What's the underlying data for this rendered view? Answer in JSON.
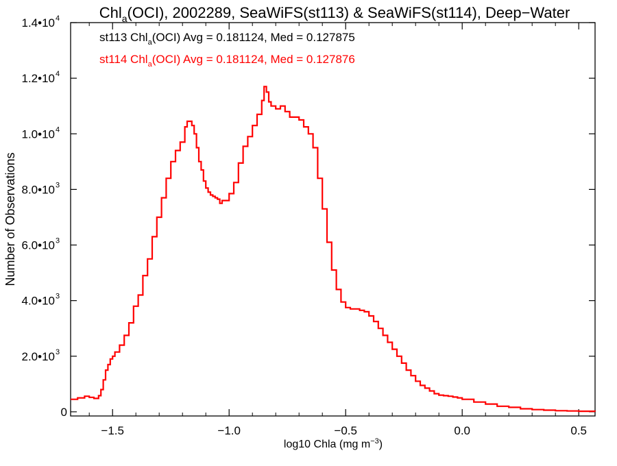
{
  "chart_data": {
    "type": "line",
    "title_parts": [
      "Chl",
      "a",
      "(OCI), 2002289, SeaWiFS(st113) & SeaWiFS(st114), Deep−Water"
    ],
    "xlabel_parts": [
      "log10 Chla (mg m",
      "−3",
      ")"
    ],
    "ylabel": "Number of Observations",
    "xlim": [
      -1.68,
      0.57
    ],
    "ylim": [
      -150,
      14000
    ],
    "x_ticks": [
      {
        "value": -1.5,
        "label": "−1.5"
      },
      {
        "value": -1.0,
        "label": "−1.0"
      },
      {
        "value": -0.5,
        "label": "−0.5"
      },
      {
        "value": 0.0,
        "label": "0.0"
      },
      {
        "value": 0.5,
        "label": "0.5"
      }
    ],
    "y_ticks": [
      {
        "value": 0,
        "mant": "0",
        "exp": ""
      },
      {
        "value": 2000,
        "mant": "2.0•10",
        "exp": "3"
      },
      {
        "value": 4000,
        "mant": "4.0•10",
        "exp": "3"
      },
      {
        "value": 6000,
        "mant": "6.0•10",
        "exp": "3"
      },
      {
        "value": 8000,
        "mant": "8.0•10",
        "exp": "3"
      },
      {
        "value": 10000,
        "mant": "1.0•10",
        "exp": "4"
      },
      {
        "value": 12000,
        "mant": "1.2•10",
        "exp": "4"
      },
      {
        "value": 14000,
        "mant": "1.4•10",
        "exp": "4"
      }
    ],
    "annotations": [
      {
        "parts": [
          "st113 Chl",
          "a",
          "(OCI) Avg = 0.181124, Med = 0.127875"
        ],
        "color": "#000000"
      },
      {
        "parts": [
          "st114 Chl",
          "a",
          "(OCI) Avg = 0.181124, Med = 0.127876"
        ],
        "color": "#ff0000"
      }
    ],
    "series": [
      {
        "color": "#ff0000",
        "style": "step",
        "points": [
          [
            -1.68,
            450
          ],
          [
            -1.65,
            500
          ],
          [
            -1.62,
            560
          ],
          [
            -1.6,
            520
          ],
          [
            -1.58,
            480
          ],
          [
            -1.56,
            580
          ],
          [
            -1.55,
            800
          ],
          [
            -1.54,
            1150
          ],
          [
            -1.53,
            1500
          ],
          [
            -1.52,
            1700
          ],
          [
            -1.51,
            1900
          ],
          [
            -1.5,
            2000
          ],
          [
            -1.49,
            2150
          ],
          [
            -1.47,
            2400
          ],
          [
            -1.45,
            2750
          ],
          [
            -1.43,
            3200
          ],
          [
            -1.41,
            3800
          ],
          [
            -1.39,
            4200
          ],
          [
            -1.37,
            4900
          ],
          [
            -1.35,
            5500
          ],
          [
            -1.33,
            6300
          ],
          [
            -1.31,
            7000
          ],
          [
            -1.29,
            7700
          ],
          [
            -1.27,
            8400
          ],
          [
            -1.25,
            9000
          ],
          [
            -1.23,
            9400
          ],
          [
            -1.21,
            9700
          ],
          [
            -1.19,
            10250
          ],
          [
            -1.18,
            10450
          ],
          [
            -1.17,
            10450
          ],
          [
            -1.16,
            10300
          ],
          [
            -1.15,
            10000
          ],
          [
            -1.14,
            9500
          ],
          [
            -1.13,
            9000
          ],
          [
            -1.12,
            8700
          ],
          [
            -1.11,
            8300
          ],
          [
            -1.1,
            8050
          ],
          [
            -1.09,
            7900
          ],
          [
            -1.08,
            7800
          ],
          [
            -1.07,
            7750
          ],
          [
            -1.06,
            7700
          ],
          [
            -1.05,
            7650
          ],
          [
            -1.04,
            7500
          ],
          [
            -1.03,
            7600
          ],
          [
            -1.02,
            7600
          ],
          [
            -1.0,
            7850
          ],
          [
            -0.98,
            8250
          ],
          [
            -0.96,
            8950
          ],
          [
            -0.94,
            9550
          ],
          [
            -0.92,
            9900
          ],
          [
            -0.9,
            10300
          ],
          [
            -0.88,
            10700
          ],
          [
            -0.86,
            11200
          ],
          [
            -0.85,
            11700
          ],
          [
            -0.84,
            11500
          ],
          [
            -0.83,
            11150
          ],
          [
            -0.82,
            11000
          ],
          [
            -0.8,
            10900
          ],
          [
            -0.78,
            11000
          ],
          [
            -0.76,
            10800
          ],
          [
            -0.74,
            10600
          ],
          [
            -0.72,
            10600
          ],
          [
            -0.7,
            10500
          ],
          [
            -0.68,
            10250
          ],
          [
            -0.66,
            10000
          ],
          [
            -0.64,
            9500
          ],
          [
            -0.62,
            8400
          ],
          [
            -0.6,
            7300
          ],
          [
            -0.58,
            6100
          ],
          [
            -0.56,
            5100
          ],
          [
            -0.54,
            4400
          ],
          [
            -0.52,
            3950
          ],
          [
            -0.5,
            3750
          ],
          [
            -0.48,
            3700
          ],
          [
            -0.46,
            3700
          ],
          [
            -0.44,
            3650
          ],
          [
            -0.42,
            3600
          ],
          [
            -0.4,
            3450
          ],
          [
            -0.38,
            3250
          ],
          [
            -0.36,
            3000
          ],
          [
            -0.34,
            2750
          ],
          [
            -0.32,
            2500
          ],
          [
            -0.3,
            2250
          ],
          [
            -0.28,
            2000
          ],
          [
            -0.26,
            1750
          ],
          [
            -0.24,
            1500
          ],
          [
            -0.22,
            1300
          ],
          [
            -0.2,
            1100
          ],
          [
            -0.18,
            950
          ],
          [
            -0.16,
            850
          ],
          [
            -0.14,
            750
          ],
          [
            -0.12,
            650
          ],
          [
            -0.1,
            600
          ],
          [
            -0.08,
            580
          ],
          [
            -0.06,
            560
          ],
          [
            -0.04,
            530
          ],
          [
            -0.02,
            500
          ],
          [
            0.0,
            450
          ],
          [
            0.05,
            350
          ],
          [
            0.1,
            280
          ],
          [
            0.15,
            200
          ],
          [
            0.2,
            160
          ],
          [
            0.25,
            110
          ],
          [
            0.3,
            80
          ],
          [
            0.35,
            60
          ],
          [
            0.4,
            40
          ],
          [
            0.45,
            30
          ],
          [
            0.5,
            20
          ],
          [
            0.57,
            10
          ]
        ]
      }
    ]
  }
}
